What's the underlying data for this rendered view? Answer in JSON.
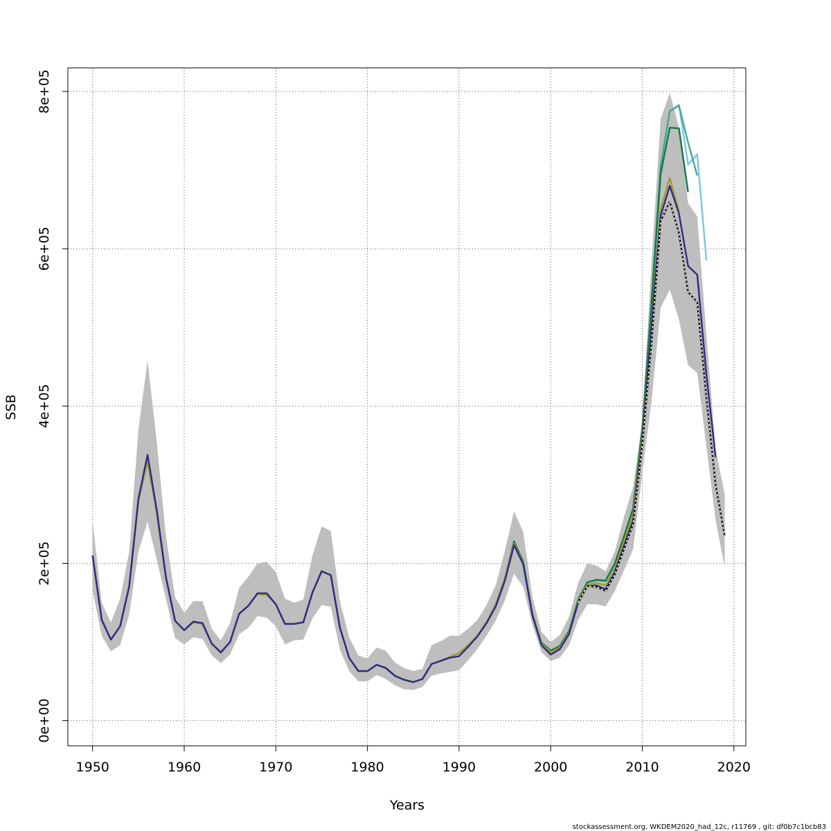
{
  "chart_data": {
    "type": "line",
    "title": "",
    "xlabel": "Years",
    "ylabel": "SSB",
    "xlim": [
      1947.3,
      2021.3
    ],
    "ylim": [
      -32000,
      830000
    ],
    "x_ticks": [
      1950,
      1960,
      1970,
      1980,
      1990,
      2000,
      2010,
      2020
    ],
    "x_tick_labels": [
      "1950",
      "1960",
      "1970",
      "1980",
      "1990",
      "2000",
      "2010",
      "2020"
    ],
    "y_ticks": [
      0,
      200000,
      400000,
      600000,
      800000
    ],
    "y_tick_labels": [
      "0e+00",
      "2e+05",
      "4e+05",
      "6e+05",
      "8e+05"
    ],
    "grid": true,
    "footer_note": "stockassessment.org, WKDEM2020_had_12c, r11769 , git: df0b7c1bcb83",
    "band": {
      "color": "#bebebe",
      "x": [
        1950,
        1951,
        1952,
        1953,
        1954,
        1955,
        1956,
        1957,
        1958,
        1959,
        1960,
        1961,
        1962,
        1963,
        1964,
        1965,
        1966,
        1967,
        1968,
        1969,
        1970,
        1971,
        1972,
        1973,
        1974,
        1975,
        1976,
        1977,
        1978,
        1979,
        1980,
        1981,
        1982,
        1983,
        1984,
        1985,
        1986,
        1987,
        1988,
        1989,
        1990,
        1991,
        1992,
        1993,
        1994,
        1995,
        1996,
        1997,
        1998,
        1999,
        2000,
        2001,
        2002,
        2003,
        2004,
        2005,
        2006,
        2007,
        2008,
        2009,
        2010,
        2011,
        2012,
        2013,
        2014,
        2015,
        2016,
        2017,
        2018,
        2019
      ],
      "lower": [
        165000,
        108000,
        88000,
        96000,
        135000,
        215000,
        253000,
        205000,
        155000,
        105000,
        97000,
        106000,
        104000,
        83000,
        73000,
        84000,
        110000,
        118000,
        133000,
        131000,
        120000,
        97000,
        102000,
        103000,
        130000,
        147000,
        145000,
        90000,
        63000,
        50000,
        50000,
        58000,
        53000,
        45000,
        40000,
        39000,
        43000,
        57000,
        60000,
        62000,
        64000,
        77000,
        91000,
        108000,
        127000,
        153000,
        187000,
        170000,
        122000,
        87000,
        76000,
        80000,
        96000,
        128000,
        148000,
        148000,
        145000,
        165000,
        191000,
        218000,
        315000,
        405000,
        525000,
        548000,
        510000,
        452000,
        442000,
        348000,
        255000,
        195000
      ],
      "upper": [
        254000,
        150000,
        125000,
        155000,
        215000,
        370000,
        458000,
        355000,
        235000,
        157000,
        137000,
        152000,
        152000,
        117000,
        102000,
        124000,
        169000,
        183000,
        200000,
        202000,
        189000,
        155000,
        150000,
        154000,
        210000,
        247000,
        241000,
        152000,
        106000,
        83000,
        79000,
        93000,
        89000,
        74000,
        67000,
        63000,
        66000,
        96000,
        101000,
        108000,
        108000,
        117000,
        128000,
        147000,
        172000,
        216000,
        266000,
        240000,
        157000,
        113000,
        100000,
        109000,
        132000,
        175000,
        200000,
        197000,
        190000,
        215000,
        259000,
        297000,
        380000,
        580000,
        765000,
        798000,
        755000,
        658000,
        641000,
        490000,
        345000,
        288000
      ]
    },
    "series": [
      {
        "color": "#7ac4dc",
        "dashed": false,
        "x": [
          1950,
          1951,
          1952,
          1953,
          1954,
          1955,
          1956,
          1957,
          1958,
          1959,
          1960,
          1961,
          1962,
          1963,
          1964,
          1965,
          1966,
          1967,
          1968,
          1969,
          1970,
          1971,
          1972,
          1973,
          1974,
          1975,
          1976,
          1977,
          1978,
          1979,
          1980,
          1981,
          1982,
          1983,
          1984,
          1985,
          1986,
          1987,
          1988,
          1989,
          1990,
          1991,
          1992,
          1993,
          1994,
          1995,
          1996,
          1997,
          1998,
          1999,
          2000,
          2001,
          2002,
          2003,
          2004,
          2005,
          2006,
          2007,
          2008,
          2009,
          2010,
          2011,
          2012,
          2013,
          2014,
          2015,
          2016,
          2017
        ],
        "values": [
          210000,
          128000,
          103000,
          120000,
          171000,
          280000,
          330000,
          265000,
          182000,
          127000,
          115000,
          125000,
          123000,
          98000,
          86000,
          100000,
          136000,
          146000,
          161000,
          160000,
          148000,
          123000,
          123000,
          125000,
          163000,
          190000,
          185000,
          118000,
          80000,
          63000,
          63000,
          71000,
          67000,
          57000,
          52000,
          49000,
          53000,
          72000,
          76000,
          81000,
          86000,
          96000,
          108000,
          125000,
          148000,
          181000,
          226000,
          201000,
          136000,
          99000,
          89000,
          95000,
          114000,
          153000,
          175000,
          178000,
          177000,
          198000,
          232000,
          268000,
          370000,
          530000,
          700000,
          775000,
          783000,
          707000,
          720000,
          585000
        ]
      },
      {
        "color": "#43a593",
        "dashed": false,
        "x": [
          2009,
          2010,
          2011,
          2012,
          2013,
          2014,
          2015,
          2016
        ],
        "values": [
          268000,
          372000,
          533000,
          705000,
          775000,
          782000,
          735000,
          693000
        ]
      },
      {
        "color": "#0f7a3f",
        "dashed": false,
        "x": [
          1950,
          1951,
          1952,
          1953,
          1954,
          1955,
          1956,
          1957,
          1958,
          1959,
          1960,
          1961,
          1962,
          1963,
          1964,
          1965,
          1966,
          1967,
          1968,
          1969,
          1970,
          1971,
          1972,
          1973,
          1974,
          1975,
          1976,
          1977,
          1978,
          1979,
          1980,
          1981,
          1982,
          1983,
          1984,
          1985,
          1986,
          1987,
          1988,
          1989,
          1990,
          1991,
          1992,
          1993,
          1994,
          1995,
          1996,
          1997,
          1998,
          1999,
          2000,
          2001,
          2002,
          2003,
          2004,
          2005,
          2006,
          2007,
          2008,
          2009,
          2010,
          2011,
          2012,
          2013,
          2014,
          2015
        ],
        "values": [
          210000,
          128000,
          103000,
          120000,
          171000,
          280000,
          330000,
          265000,
          182000,
          127000,
          115000,
          125000,
          123000,
          98000,
          86000,
          100000,
          136000,
          146000,
          161000,
          160000,
          148000,
          123000,
          123000,
          125000,
          163000,
          190000,
          185000,
          118000,
          80000,
          63000,
          63000,
          71000,
          67000,
          57000,
          52000,
          49000,
          53000,
          72000,
          76000,
          81000,
          86000,
          96000,
          108000,
          125000,
          148000,
          181000,
          228000,
          202000,
          136000,
          99000,
          89000,
          95000,
          114000,
          154000,
          176000,
          179000,
          178000,
          200000,
          234000,
          270000,
          372000,
          528000,
          695000,
          754000,
          753000,
          672000
        ]
      },
      {
        "color": "#a89a2a",
        "dashed": false,
        "x": [
          1950,
          1951,
          1952,
          1953,
          1954,
          1955,
          1956,
          1957,
          1958,
          1959,
          1960,
          1961,
          1962,
          1963,
          1964,
          1965,
          1966,
          1967,
          1968,
          1969,
          1970,
          1971,
          1972,
          1973,
          1974,
          1975,
          1976,
          1977,
          1978,
          1979,
          1980,
          1981,
          1982,
          1983,
          1984,
          1985,
          1986,
          1987,
          1988,
          1989,
          1990,
          1991,
          1992,
          1993,
          1994,
          1995,
          1996,
          1997,
          1998,
          1999,
          2000,
          2001,
          2002,
          2003,
          2004,
          2005,
          2006,
          2007,
          2008,
          2009,
          2010,
          2011,
          2012,
          2013,
          2014
        ],
        "values": [
          210000,
          128000,
          103000,
          120000,
          171000,
          280000,
          330000,
          265000,
          182000,
          127000,
          115000,
          125000,
          123000,
          98000,
          86000,
          100000,
          136000,
          146000,
          161000,
          160000,
          148000,
          123000,
          123000,
          125000,
          163000,
          190000,
          185000,
          118000,
          80000,
          63000,
          63000,
          71000,
          67000,
          57000,
          52000,
          49000,
          53000,
          72000,
          76000,
          81000,
          86000,
          96000,
          108000,
          125000,
          148000,
          181000,
          225000,
          200000,
          135000,
          98000,
          87000,
          93000,
          112000,
          152000,
          173000,
          175000,
          172000,
          194000,
          228000,
          262000,
          362000,
          505000,
          650000,
          690000,
          648000
        ]
      },
      {
        "color": "#2d2a86",
        "dashed": false,
        "x": [
          1950,
          1951,
          1952,
          1953,
          1954,
          1955,
          1956,
          1957,
          1958,
          1959,
          1960,
          1961,
          1962,
          1963,
          1964,
          1965,
          1966,
          1967,
          1968,
          1969,
          1970,
          1971,
          1972,
          1973,
          1974,
          1975,
          1976,
          1977,
          1978,
          1979,
          1980,
          1981,
          1982,
          1983,
          1984,
          1985,
          1986,
          1987,
          1988,
          1989,
          1990,
          1991,
          1992,
          1993,
          1994,
          1995,
          1996,
          1997,
          1998,
          1999,
          2000,
          2001,
          2002,
          2003,
          2004,
          2005,
          2006,
          2007,
          2008,
          2009,
          2010,
          2011,
          2012,
          2013,
          2014,
          2015,
          2016,
          2017,
          2018
        ],
        "values": [
          210000,
          128000,
          103000,
          120000,
          171000,
          282000,
          338000,
          268000,
          183000,
          127000,
          115000,
          126000,
          124000,
          98000,
          87000,
          100000,
          136000,
          146000,
          162000,
          162000,
          148000,
          123000,
          123000,
          125000,
          163000,
          190000,
          185000,
          118000,
          80000,
          63000,
          63000,
          71000,
          67000,
          57000,
          52000,
          49000,
          53000,
          72000,
          76000,
          80000,
          82000,
          94000,
          107000,
          124000,
          145000,
          178000,
          223000,
          199000,
          134000,
          96000,
          84000,
          91000,
          110000,
          150000,
          171000,
          172000,
          167000,
          189000,
          222000,
          255000,
          356000,
          500000,
          642000,
          680000,
          645000,
          578000,
          567000,
          440000,
          335000
        ]
      },
      {
        "color": "#111111",
        "dashed": false,
        "x": [
          2003,
          2004,
          2005,
          2006,
          2007,
          2008,
          2009,
          2010,
          2011,
          2012,
          2013,
          2014,
          2015,
          2016,
          2017,
          2018,
          2019
        ],
        "values": [
          150000,
          171000,
          170000,
          165000,
          186000,
          218000,
          250000,
          350000,
          480000,
          635000,
          660000,
          620000,
          545000,
          532000,
          410000,
          300000,
          235000
        ]
      },
      {
        "color": "#ffffff",
        "dashed": true,
        "x": [
          2003,
          2004,
          2005,
          2006,
          2007,
          2008,
          2009,
          2010,
          2011,
          2012,
          2013,
          2014,
          2015,
          2016,
          2017,
          2018,
          2019
        ],
        "values": [
          150000,
          171000,
          170000,
          165000,
          186000,
          218000,
          250000,
          350000,
          480000,
          635000,
          660000,
          620000,
          545000,
          532000,
          410000,
          300000,
          235000
        ]
      }
    ]
  }
}
